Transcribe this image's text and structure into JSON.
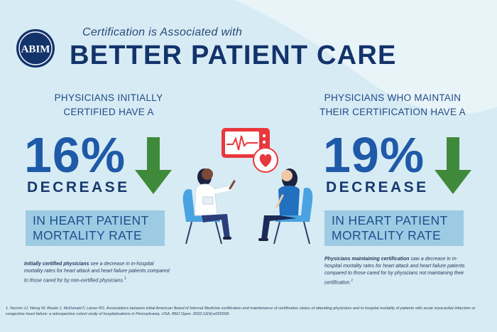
{
  "header": {
    "logo_text": "ABIM",
    "subtitle": "Certification is Associated with",
    "title": "BETTER PATIENT CARE"
  },
  "left": {
    "lead_line1": "PHYSICIANS INITIALLY",
    "lead_line2": "CERTIFIED HAVE A",
    "percent": "16%",
    "decrease": "DECREASE",
    "box_line1": "IN HEART PATIENT",
    "box_line2": "MORTALITY RATE",
    "note_bold": "Initially certified physicians",
    "note_rest": " see a decrease in in-hospital mortality rates for heart attack and heart failure patients compared to those cared for by non-certified physicians.",
    "note_ref": "1"
  },
  "right": {
    "lead_line1": "PHYSICIANS WHO MAINTAIN",
    "lead_line2": "THEIR CERTIFICATION HAVE A",
    "percent": "19%",
    "decrease": "DECREASE",
    "box_line1": "IN HEART PATIENT",
    "box_line2": "MORTALITY RATE",
    "note_bold": "Physicians maintaining certification",
    "note_rest": " saw a decrease in in-hospital mortality rates for heart attack and heart failure patients compared to those cared for by physicians not maintaining their certification.",
    "note_ref": "1"
  },
  "footnote": "1.   Norcini JJ, Weng W, Boulet J, McDonald F, Lipner RS. Associations between initial American Board of Internal Medicine certification and maintenance of certification status of attending physicians and in-hospital mortality of patients with acute myocardial infarction or congestive heart failure: a retrospective cohort study of hospitalisations in Pennsylvania, USA. BMJ Open. 2022;12(4):e055558.",
  "colors": {
    "navy": "#13336b",
    "blue": "#1e5aa8",
    "green": "#3f8a3a",
    "box": "#9dcbe3",
    "monitor_red": "#e8383d"
  },
  "icons": [
    "abim-logo",
    "down-arrow-icon",
    "heart-monitor-icon",
    "heart-icon",
    "doctor-patient-illustration"
  ]
}
